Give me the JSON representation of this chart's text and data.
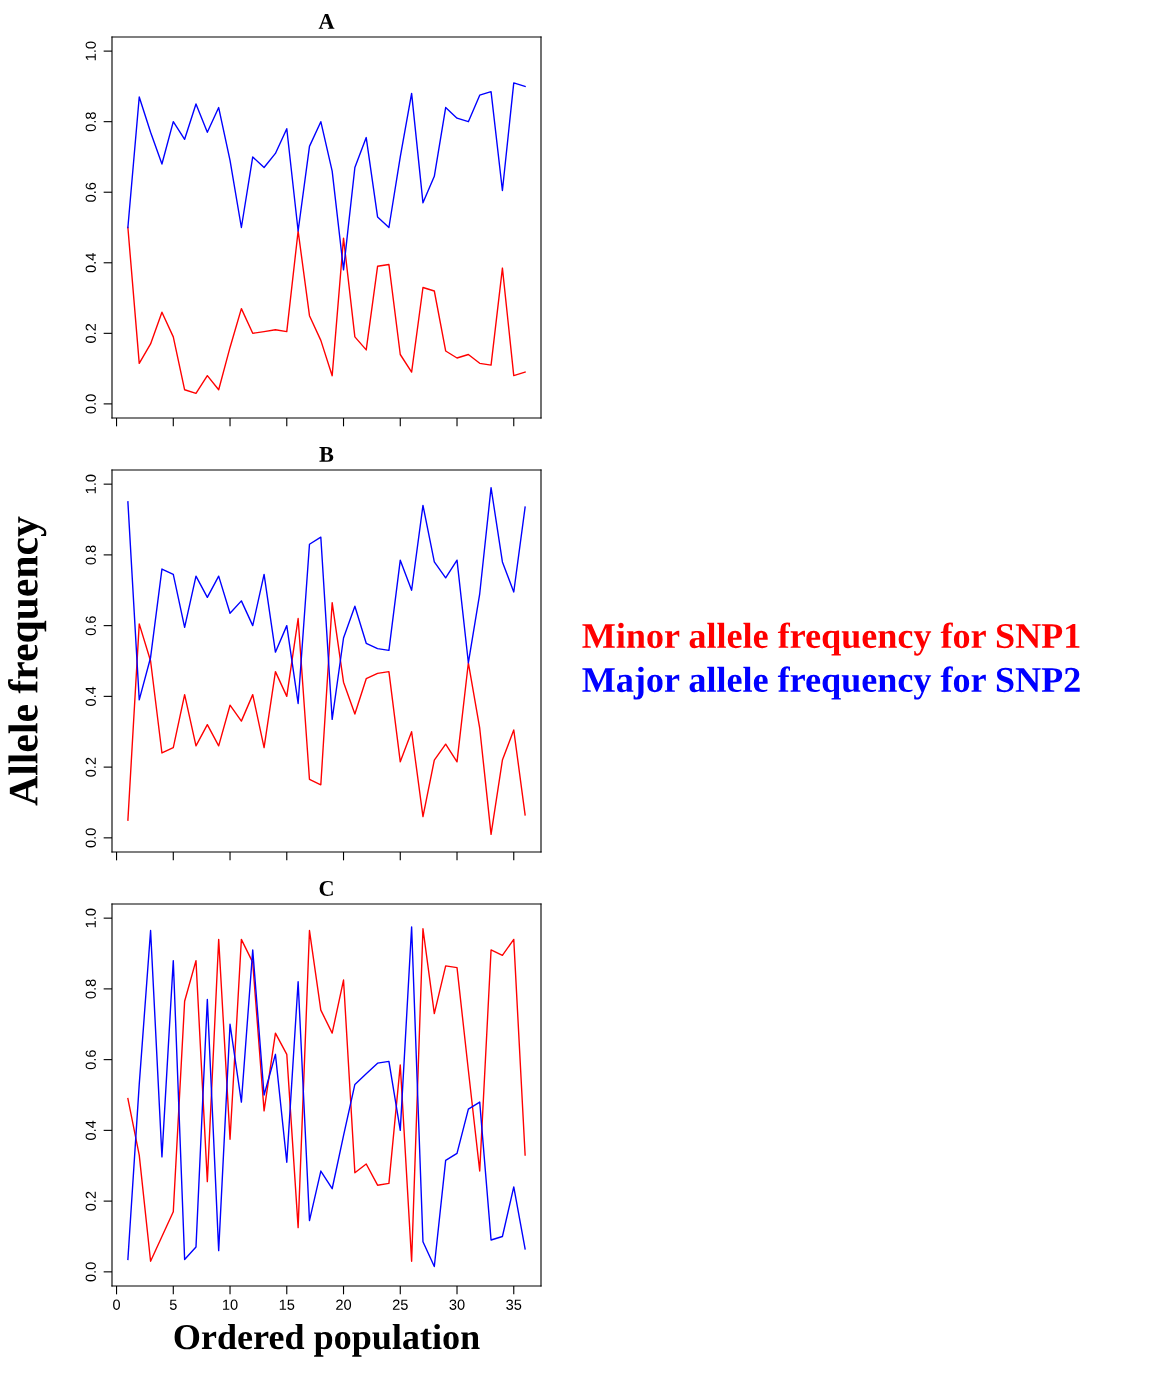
{
  "chart_data": [
    {
      "type": "line",
      "title": "A",
      "x": [
        1,
        2,
        3,
        4,
        5,
        6,
        7,
        8,
        9,
        10,
        11,
        12,
        13,
        14,
        15,
        16,
        17,
        18,
        19,
        20,
        21,
        22,
        23,
        24,
        25,
        26,
        27,
        28,
        29,
        30,
        31,
        32,
        33,
        34,
        35,
        36
      ],
      "series": [
        {
          "color": "#ff0000",
          "values": [
            0.5,
            0.115,
            0.17,
            0.26,
            0.19,
            0.04,
            0.03,
            0.08,
            0.04,
            0.16,
            0.27,
            0.2,
            0.205,
            0.21,
            0.205,
            0.49,
            0.25,
            0.18,
            0.08,
            0.47,
            0.19,
            0.153,
            0.39,
            0.395,
            0.14,
            0.09,
            0.33,
            0.32,
            0.15,
            0.13,
            0.14,
            0.115,
            0.11,
            0.385,
            0.08,
            0.09
          ]
        },
        {
          "color": "#0000ff",
          "values": [
            0.5,
            0.87,
            0.77,
            0.68,
            0.8,
            0.75,
            0.85,
            0.77,
            0.84,
            0.69,
            0.5,
            0.7,
            0.67,
            0.71,
            0.78,
            0.49,
            0.73,
            0.8,
            0.66,
            0.38,
            0.67,
            0.755,
            0.53,
            0.5,
            0.7,
            0.88,
            0.57,
            0.645,
            0.84,
            0.81,
            0.8,
            0.875,
            0.885,
            0.605,
            0.91,
            0.9
          ]
        }
      ],
      "xlim": [
        -0.4,
        37.4
      ],
      "ylim": [
        -0.04,
        1.04
      ],
      "xticks": [
        0,
        5,
        10,
        15,
        20,
        25,
        30,
        35
      ],
      "yticks": [
        {
          "value": 0,
          "label": "0.0"
        },
        {
          "value": 0.2,
          "label": "0.2"
        },
        {
          "value": 0.4,
          "label": "0.4"
        },
        {
          "value": 0.6,
          "label": "0.6"
        },
        {
          "value": 0.8,
          "label": "0.8"
        },
        {
          "value": 1,
          "label": "1.0"
        }
      ],
      "tick_labels": "y",
      "line_style": "solid"
    },
    {
      "type": "line",
      "title": "B",
      "ylabel": "Allele frequency",
      "x": [
        1,
        2,
        3,
        4,
        5,
        6,
        7,
        8,
        9,
        10,
        11,
        12,
        13,
        14,
        15,
        16,
        17,
        18,
        19,
        20,
        21,
        22,
        23,
        24,
        25,
        26,
        27,
        28,
        29,
        30,
        31,
        32,
        33,
        34,
        35,
        36
      ],
      "series": [
        {
          "name": "Minor allele frequency for SNP1",
          "color": "#ff0000",
          "values": [
            0.05,
            0.605,
            0.5,
            0.24,
            0.255,
            0.405,
            0.26,
            0.32,
            0.26,
            0.375,
            0.33,
            0.405,
            0.255,
            0.47,
            0.4,
            0.62,
            0.165,
            0.15,
            0.665,
            0.44,
            0.35,
            0.45,
            0.465,
            0.47,
            0.215,
            0.3,
            0.06,
            0.22,
            0.265,
            0.215,
            0.495,
            0.31,
            0.01,
            0.22,
            0.305,
            0.065
          ]
        },
        {
          "name": "Major allele frequency for SNP2",
          "color": "#0000ff",
          "values": [
            0.95,
            0.39,
            0.51,
            0.76,
            0.745,
            0.595,
            0.74,
            0.68,
            0.74,
            0.635,
            0.67,
            0.6,
            0.745,
            0.525,
            0.6,
            0.38,
            0.83,
            0.85,
            0.335,
            0.565,
            0.655,
            0.55,
            0.535,
            0.53,
            0.785,
            0.7,
            0.94,
            0.78,
            0.735,
            0.785,
            0.495,
            0.69,
            0.99,
            0.78,
            0.695,
            0.935
          ]
        }
      ],
      "xlim": [
        -0.4,
        37.4
      ],
      "ylim": [
        -0.04,
        1.04
      ],
      "xticks": [
        0,
        5,
        10,
        15,
        20,
        25,
        30,
        35
      ],
      "yticks": [
        {
          "value": 0,
          "label": "0.0"
        },
        {
          "value": 0.2,
          "label": "0.2"
        },
        {
          "value": 0.4,
          "label": "0.4"
        },
        {
          "value": 0.6,
          "label": "0.6"
        },
        {
          "value": 0.8,
          "label": "0.8"
        },
        {
          "value": 1,
          "label": "1.0"
        }
      ],
      "tick_labels": "y",
      "line_style": "solid"
    },
    {
      "type": "line",
      "title": "C",
      "xlabel": "Ordered population",
      "x": [
        1,
        2,
        3,
        4,
        5,
        6,
        7,
        8,
        9,
        10,
        11,
        12,
        13,
        14,
        15,
        16,
        17,
        18,
        19,
        20,
        21,
        22,
        23,
        24,
        25,
        26,
        27,
        28,
        29,
        30,
        31,
        32,
        33,
        34,
        35,
        36
      ],
      "series": [
        {
          "color": "#ff0000",
          "values": [
            0.49,
            0.33,
            0.03,
            0.1,
            0.17,
            0.765,
            0.88,
            0.255,
            0.94,
            0.375,
            0.94,
            0.875,
            0.455,
            0.675,
            0.615,
            0.125,
            0.965,
            0.74,
            0.675,
            0.825,
            0.28,
            0.305,
            0.245,
            0.25,
            0.585,
            0.03,
            0.97,
            0.73,
            0.865,
            0.86,
            0.57,
            0.285,
            0.91,
            0.895,
            0.94,
            0.33
          ]
        },
        {
          "color": "#0000ff",
          "values": [
            0.035,
            0.53,
            0.965,
            0.325,
            0.88,
            0.035,
            0.07,
            0.77,
            0.06,
            0.7,
            0.48,
            0.91,
            0.5,
            0.615,
            0.31,
            0.82,
            0.145,
            0.285,
            0.235,
            0.385,
            0.53,
            0.56,
            0.59,
            0.595,
            0.4,
            0.975,
            0.085,
            0.015,
            0.315,
            0.335,
            0.46,
            0.48,
            0.09,
            0.1,
            0.24,
            0.065
          ]
        }
      ],
      "xlim": [
        -0.4,
        37.4
      ],
      "ylim": [
        -0.04,
        1.04
      ],
      "xticks": [
        0,
        5,
        10,
        15,
        20,
        25,
        30,
        35
      ],
      "yticks": [
        {
          "value": 0,
          "label": "0.0"
        },
        {
          "value": 0.2,
          "label": "0.2"
        },
        {
          "value": 0.4,
          "label": "0.4"
        },
        {
          "value": 0.6,
          "label": "0.6"
        },
        {
          "value": 0.8,
          "label": "0.8"
        },
        {
          "value": 1,
          "label": "1.0"
        }
      ],
      "line_style": "solid"
    }
  ]
}
